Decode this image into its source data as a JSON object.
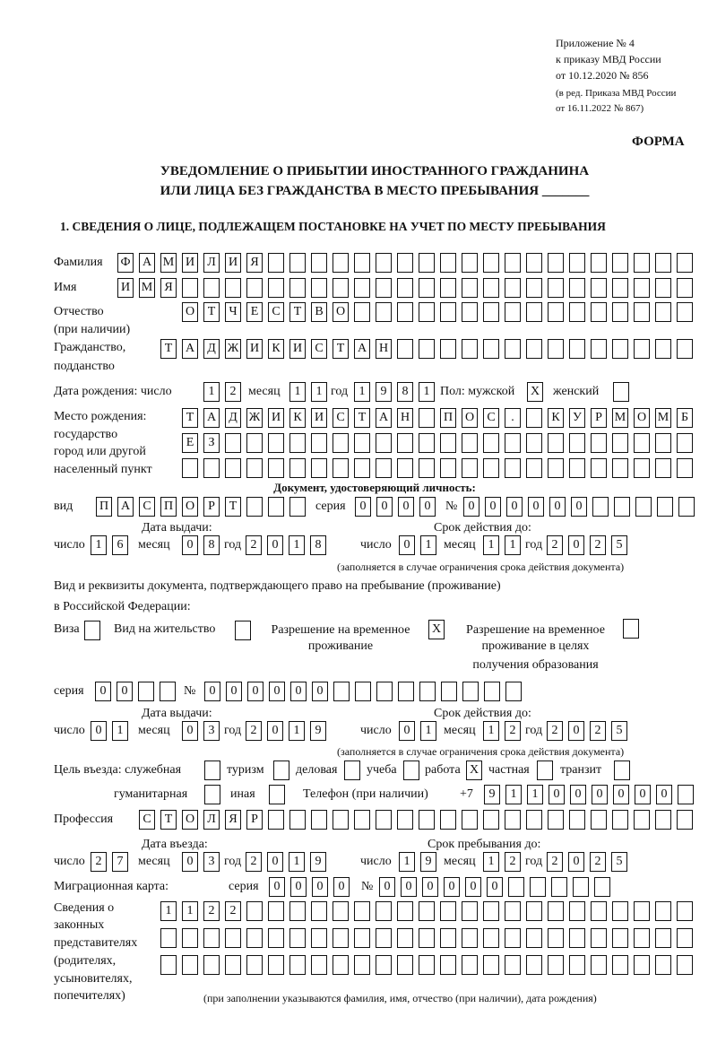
{
  "header": {
    "appendix": "Приложение № 4",
    "order": "к приказу МВД России",
    "order_date": "от 10.12.2020 № 856",
    "revision1": "(в ред. Приказа МВД России",
    "revision2": "от 16.11.2022 № 867)",
    "form_label": "ФОРМА",
    "title1": "УВЕДОМЛЕНИЕ О ПРИБЫТИИ ИНОСТРАННОГО ГРАЖДАНИНА",
    "title2": "ИЛИ ЛИЦА БЕЗ ГРАЖДАНСТВА В МЕСТО ПРЕБЫВАНИЯ _______",
    "section1": "1. СВЕДЕНИЯ О ЛИЦЕ, ПОДЛЕЖАЩЕМ ПОСТАНОВКЕ НА УЧЕТ ПО МЕСТУ ПРЕБЫВАНИЯ"
  },
  "labels": {
    "surname": "Фамилия",
    "name": "Имя",
    "patronymic1": "Отчество",
    "patronymic2": "(при наличии)",
    "citizenship1": "Гражданство,",
    "citizenship2": "подданство",
    "birth_date": "Дата рождения:  число",
    "month": "месяц",
    "year": "год",
    "day": "число",
    "sex_male": "Пол: мужской",
    "sex_female": "женский",
    "birthplace1": "Место рождения:",
    "birthplace2": "государство",
    "birthplace3": "город или другой",
    "birthplace4": "населенный пункт",
    "id_doc": "Документ, удостоверяющий личность:",
    "kind": "вид",
    "series": "серия",
    "number": "№",
    "issue_date": "Дата выдачи:",
    "valid_until": "Срок действия до:",
    "validity_note": "(заполняется в случае ограничения срока действия документа)",
    "stay_doc1": "Вид и реквизиты документа, подтверждающего право на пребывание (проживание)",
    "stay_doc2": "в Российской Федерации:",
    "visa": "Виза",
    "residence": "Вид на жительство",
    "temp_res1": "Разрешение на временное",
    "temp_res2": "проживание",
    "temp_edu1": "Разрешение на временное",
    "temp_edu2": "проживание в целях",
    "temp_edu3": "получения образования",
    "purpose": "Цель въезда: служебная",
    "tourism": "туризм",
    "business": "деловая",
    "study": "учеба",
    "work": "работа",
    "private": "частная",
    "transit": "транзит",
    "humanitarian": "гуманитарная",
    "other": "иная",
    "phone": "Телефон (при наличии)",
    "phone_prefix": "+7",
    "profession": "Профессия",
    "entry_date": "Дата въезда:",
    "stay_until": "Срок пребывания до:",
    "migration_card": "Миграционная карта:",
    "legal_rep1": "Сведения о",
    "legal_rep2": "законных",
    "legal_rep3": "представителях",
    "legal_rep4": "(родителях,",
    "legal_rep5": "усыновителях,",
    "legal_rep6": "попечителях)",
    "legal_rep_note": "(при заполнении указываются фамилия, имя, отчество (при наличии), дата рождения)"
  },
  "fields": {
    "surname": [
      "Ф",
      "А",
      "М",
      "И",
      "Л",
      "И",
      "Я"
    ],
    "name": [
      "И",
      "М",
      "Я"
    ],
    "patronymic": [
      "О",
      "Т",
      "Ч",
      "Е",
      "С",
      "Т",
      "В",
      "О"
    ],
    "citizenship": [
      "Т",
      "А",
      "Д",
      "Ж",
      "И",
      "К",
      "И",
      "С",
      "Т",
      "А",
      "Н"
    ],
    "birth_day": [
      "1",
      "2"
    ],
    "birth_month": [
      "1",
      "1"
    ],
    "birth_year": [
      "1",
      "9",
      "8",
      "1"
    ],
    "sex_male": [
      "X"
    ],
    "sex_female": [
      ""
    ],
    "birthplace_1": [
      "Т",
      "А",
      "Д",
      "Ж",
      "И",
      "К",
      "И",
      "С",
      "Т",
      "А",
      "Н",
      "",
      "П",
      "О",
      "С",
      ".",
      "",
      "К",
      "У",
      "Р",
      "М",
      "О",
      "М",
      "Б"
    ],
    "birthplace_2": [
      "Е",
      "З"
    ],
    "birthplace_3": [],
    "id_kind": [
      "П",
      "А",
      "С",
      "П",
      "О",
      "Р",
      "Т"
    ],
    "id_series": [
      "0",
      "0",
      "0",
      "0"
    ],
    "id_number": [
      "0",
      "0",
      "0",
      "0",
      "0",
      "0"
    ],
    "id_issue_day": [
      "1",
      "6"
    ],
    "id_issue_month": [
      "0",
      "8"
    ],
    "id_issue_year": [
      "2",
      "0",
      "1",
      "8"
    ],
    "id_valid_day": [
      "0",
      "1"
    ],
    "id_valid_month": [
      "1",
      "1"
    ],
    "id_valid_year": [
      "2",
      "0",
      "2",
      "5"
    ],
    "visa": [
      ""
    ],
    "residence": [
      ""
    ],
    "temp_res": [
      "X"
    ],
    "temp_edu": [
      ""
    ],
    "stay_series": [
      "0",
      "0"
    ],
    "stay_number": [
      "0",
      "0",
      "0",
      "0",
      "0",
      "0"
    ],
    "stay_issue_day": [
      "0",
      "1"
    ],
    "stay_issue_month": [
      "0",
      "3"
    ],
    "stay_issue_year": [
      "2",
      "0",
      "1",
      "9"
    ],
    "stay_valid_day": [
      "0",
      "1"
    ],
    "stay_valid_month": [
      "1",
      "2"
    ],
    "stay_valid_year": [
      "2",
      "0",
      "2",
      "5"
    ],
    "purpose_official": [
      ""
    ],
    "purpose_tourism": [
      ""
    ],
    "purpose_business": [
      ""
    ],
    "purpose_study": [
      ""
    ],
    "purpose_work": [
      "X"
    ],
    "purpose_private": [
      ""
    ],
    "purpose_transit": [
      ""
    ],
    "purpose_humanitarian": [
      ""
    ],
    "purpose_other": [
      ""
    ],
    "phone": [
      "9",
      "1",
      "1",
      "0",
      "0",
      "0",
      "0",
      "0",
      "0"
    ],
    "profession": [
      "С",
      "Т",
      "О",
      "Л",
      "Я",
      "Р"
    ],
    "entry_day": [
      "2",
      "7"
    ],
    "entry_month": [
      "0",
      "3"
    ],
    "entry_year": [
      "2",
      "0",
      "1",
      "9"
    ],
    "stay_until_day": [
      "1",
      "9"
    ],
    "stay_until_month": [
      "1",
      "2"
    ],
    "stay_until_year": [
      "2",
      "0",
      "2",
      "5"
    ],
    "mig_series": [
      "0",
      "0",
      "0",
      "0"
    ],
    "mig_number": [
      "0",
      "0",
      "0",
      "0",
      "0",
      "0"
    ],
    "legal_rep_1": [
      "1",
      "1",
      "2",
      "2"
    ],
    "legal_rep_2": [],
    "legal_rep_3": []
  }
}
